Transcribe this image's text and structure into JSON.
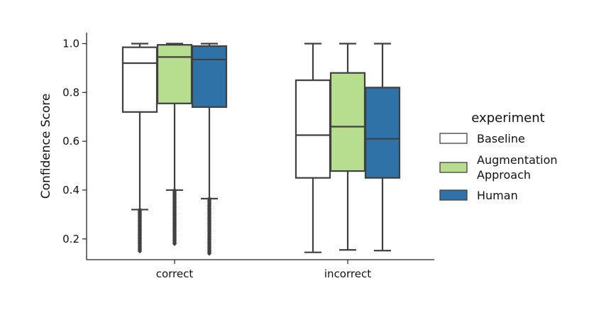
{
  "chart_data": {
    "type": "boxplot",
    "xlabel": "",
    "ylabel": "Confidence Score",
    "ylim": [
      0.115,
      1.045
    ],
    "yticks": [
      "0.2",
      "0.4",
      "0.6",
      "0.8",
      "1.0"
    ],
    "categories": [
      "correct",
      "incorrect"
    ],
    "grid": false,
    "legend": {
      "title": "experiment",
      "placement": "right",
      "entries": [
        {
          "name": "Baseline",
          "lines": [
            "Baseline"
          ],
          "color": "#ffffff"
        },
        {
          "name": "Augmentation Approach",
          "lines": [
            "Augmentation",
            "Approach"
          ],
          "color": "#b7dd8f"
        },
        {
          "name": "Human",
          "lines": [
            "Human"
          ],
          "color": "#2f72a8"
        }
      ]
    },
    "series": [
      {
        "name": "Baseline",
        "color": "#ffffff",
        "boxes": [
          {
            "category": "correct",
            "whisker_low": 0.32,
            "q1": 0.72,
            "median": 0.92,
            "q3": 0.985,
            "whisker_high": 1.0,
            "outliers_min": 0.15,
            "outliers_max": 0.32
          },
          {
            "category": "incorrect",
            "whisker_low": 0.145,
            "q1": 0.45,
            "median": 0.625,
            "q3": 0.85,
            "whisker_high": 1.0,
            "outliers_min": null,
            "outliers_max": null
          }
        ]
      },
      {
        "name": "Augmentation Approach",
        "color": "#b7dd8f",
        "boxes": [
          {
            "category": "correct",
            "whisker_low": 0.4,
            "q1": 0.755,
            "median": 0.945,
            "q3": 0.995,
            "whisker_high": 1.0,
            "outliers_min": 0.18,
            "outliers_max": 0.4
          },
          {
            "category": "incorrect",
            "whisker_low": 0.155,
            "q1": 0.478,
            "median": 0.66,
            "q3": 0.88,
            "whisker_high": 1.0,
            "outliers_min": null,
            "outliers_max": null
          }
        ]
      },
      {
        "name": "Human",
        "color": "#2f72a8",
        "boxes": [
          {
            "category": "correct",
            "whisker_low": 0.365,
            "q1": 0.74,
            "median": 0.935,
            "q3": 0.99,
            "whisker_high": 1.0,
            "outliers_min": 0.14,
            "outliers_max": 0.365
          },
          {
            "category": "incorrect",
            "whisker_low": 0.152,
            "q1": 0.45,
            "median": 0.61,
            "q3": 0.82,
            "whisker_high": 1.0,
            "outliers_min": null,
            "outliers_max": null
          }
        ]
      }
    ]
  }
}
